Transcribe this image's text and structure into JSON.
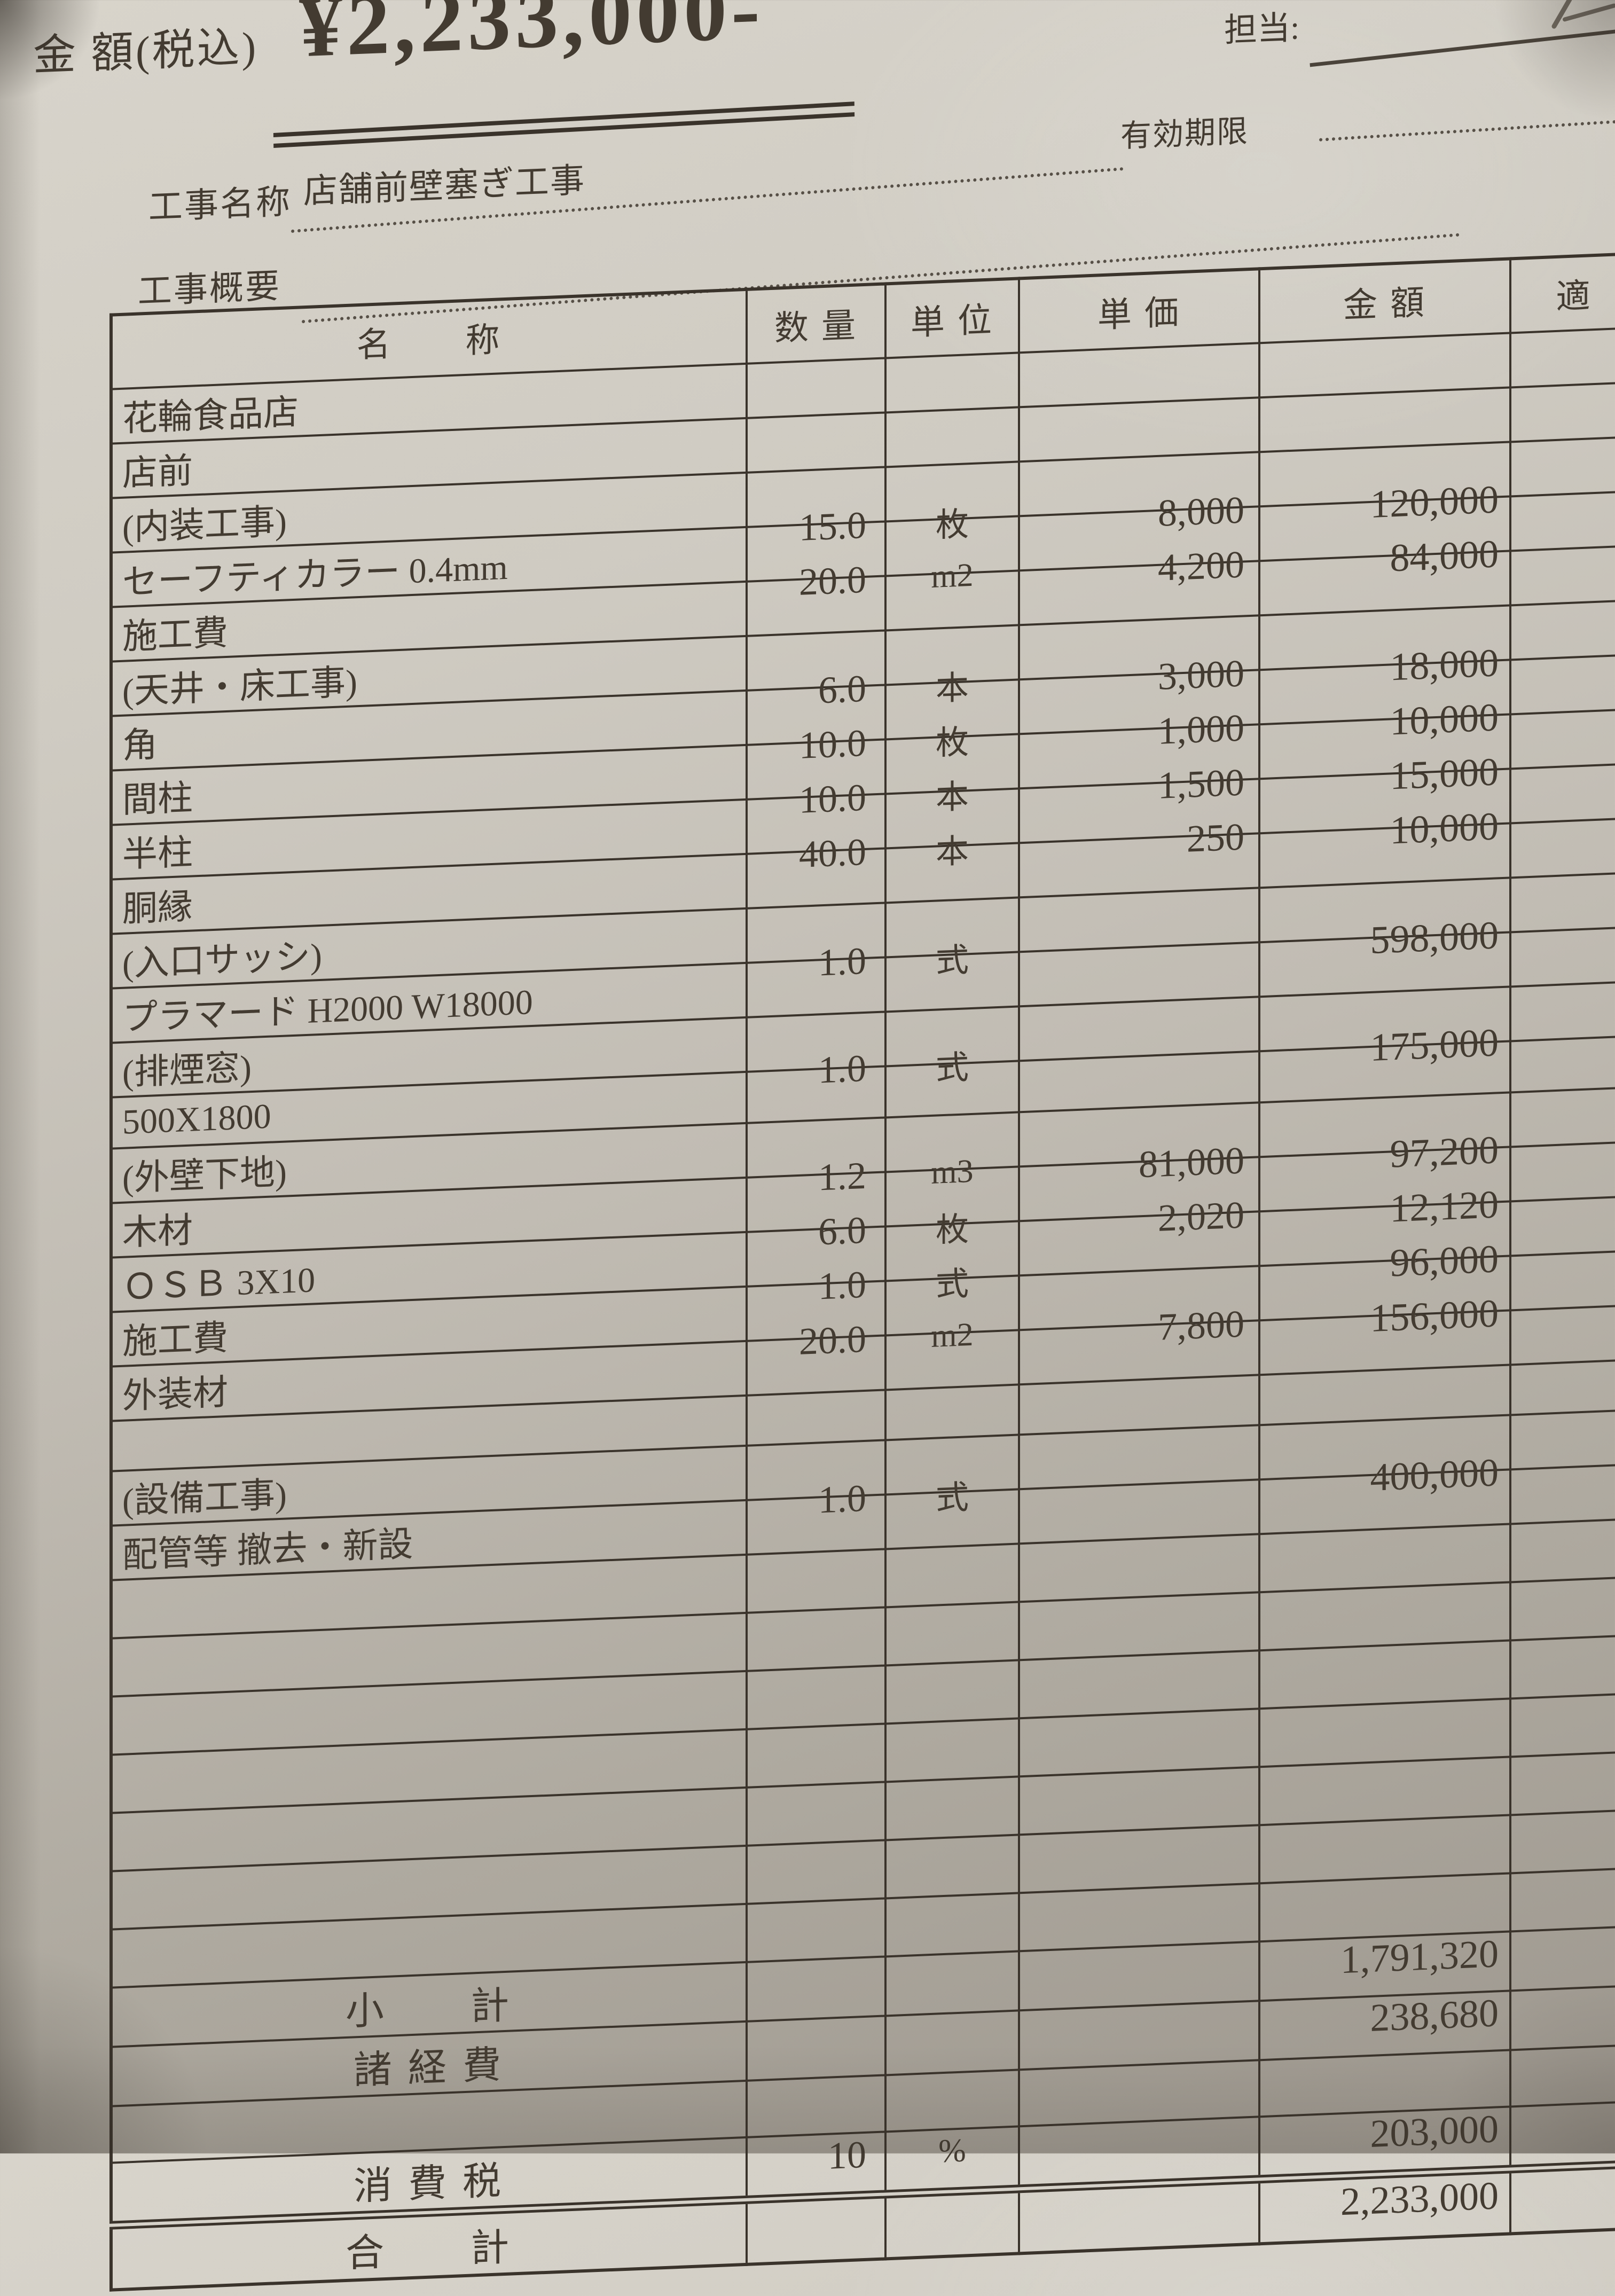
{
  "colors": {
    "paper": "#c9c5bc",
    "ink": "#433b31",
    "grid_line": "#3a332b"
  },
  "header": {
    "amount_label": "金 額(税込)",
    "amount_value": "¥2,233,000-",
    "staff_label": "担当:",
    "validity_label": "有効期限",
    "project_name_label": "工事名称",
    "project_name_value": "店舗前壁塞ぎ工事",
    "project_summary_label": "工事概要",
    "project_summary_value": ""
  },
  "table": {
    "columns": {
      "name": "名　　称",
      "qty": "数 量",
      "unit": "単 位",
      "unit_price": "単 価",
      "amount": "金 額",
      "remark": "適"
    },
    "rows": [
      {
        "n": "花輪食品店",
        "q": "",
        "u": "",
        "p": "",
        "a": ""
      },
      {
        "n": "店前",
        "q": "",
        "u": "",
        "p": "",
        "a": ""
      },
      {
        "n": "(内装工事)",
        "q": "",
        "u": "",
        "p": "",
        "a": ""
      },
      {
        "n": "セーフティカラー 0.4mm",
        "q": "15.0",
        "u": "枚",
        "p": "8,000",
        "a": "120,000"
      },
      {
        "n": "施工費",
        "q": "20.0",
        "u": "m2",
        "p": "4,200",
        "a": "84,000"
      },
      {
        "n": "(天井・床工事)",
        "q": "",
        "u": "",
        "p": "",
        "a": ""
      },
      {
        "n": "角",
        "q": "6.0",
        "u": "本",
        "p": "3,000",
        "a": "18,000"
      },
      {
        "n": "間柱",
        "q": "10.0",
        "u": "枚",
        "p": "1,000",
        "a": "10,000"
      },
      {
        "n": "半柱",
        "q": "10.0",
        "u": "本",
        "p": "1,500",
        "a": "15,000"
      },
      {
        "n": "胴縁",
        "q": "40.0",
        "u": "本",
        "p": "250",
        "a": "10,000"
      },
      {
        "n": "(入口サッシ)",
        "q": "",
        "u": "",
        "p": "",
        "a": ""
      },
      {
        "n": "プラマード  H2000 W18000",
        "q": "1.0",
        "u": "式",
        "p": "",
        "a": "598,000"
      },
      {
        "n": "(排煙窓)",
        "q": "",
        "u": "",
        "p": "",
        "a": ""
      },
      {
        "n": "500X1800",
        "q": "1.0",
        "u": "式",
        "p": "",
        "a": "175,000"
      },
      {
        "n": "(外壁下地)",
        "q": "",
        "u": "",
        "p": "",
        "a": ""
      },
      {
        "n": "木材",
        "q": "1.2",
        "u": "m3",
        "p": "81,000",
        "a": "97,200"
      },
      {
        "n": "ＯＳＢ 3X10",
        "q": "6.0",
        "u": "枚",
        "p": "2,020",
        "a": "12,120"
      },
      {
        "n": "施工費",
        "q": "1.0",
        "u": "式",
        "p": "",
        "a": "96,000"
      },
      {
        "n": "外装材",
        "q": "20.0",
        "u": "m2",
        "p": "7,800",
        "a": "156,000"
      },
      {
        "n": "",
        "q": "",
        "u": "",
        "p": "",
        "a": ""
      },
      {
        "n": "(設備工事)",
        "q": "",
        "u": "",
        "p": "",
        "a": ""
      },
      {
        "n": "配管等 撤去・新設",
        "q": "1.0",
        "u": "式",
        "p": "",
        "a": "400,000"
      },
      {
        "n": "",
        "q": "",
        "u": "",
        "p": "",
        "a": ""
      },
      {
        "n": "",
        "q": "",
        "u": "",
        "p": "",
        "a": ""
      },
      {
        "n": "",
        "q": "",
        "u": "",
        "p": "",
        "a": ""
      },
      {
        "n": "",
        "q": "",
        "u": "",
        "p": "",
        "a": ""
      },
      {
        "n": "",
        "q": "",
        "u": "",
        "p": "",
        "a": ""
      },
      {
        "n": "",
        "q": "",
        "u": "",
        "p": "",
        "a": ""
      },
      {
        "n": "",
        "q": "",
        "u": "",
        "p": "",
        "a": ""
      }
    ],
    "totals": [
      {
        "label": "小　　計",
        "q": "",
        "u": "",
        "p": "",
        "a": "1,791,320"
      },
      {
        "label": "諸 経 費",
        "q": "",
        "u": "",
        "p": "",
        "a": "238,680"
      },
      {
        "label": "",
        "q": "",
        "u": "",
        "p": "",
        "a": ""
      },
      {
        "label": "消 費 税",
        "q": "10",
        "u": "%",
        "p": "",
        "a": "203,000"
      },
      {
        "label": "合　　計",
        "q": "",
        "u": "",
        "p": "",
        "a": "2,233,000"
      }
    ]
  }
}
